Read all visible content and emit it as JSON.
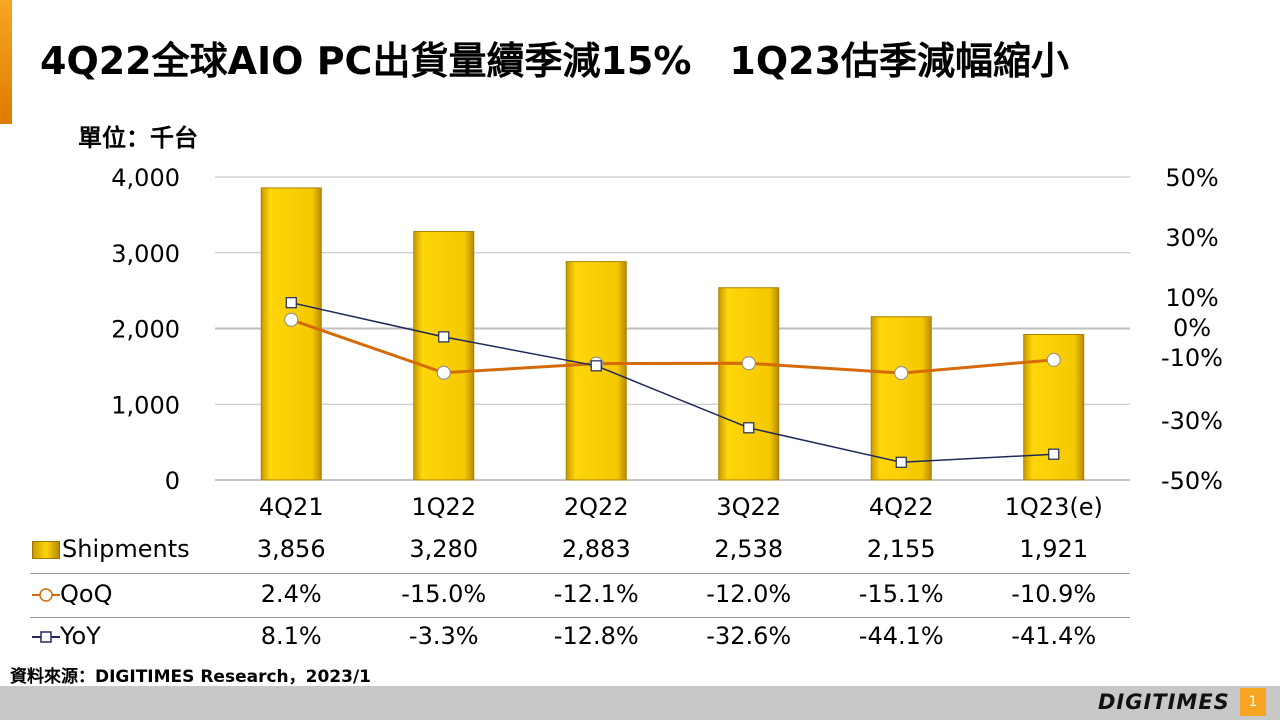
{
  "title": "4Q22全球AIO PC出貨量續季減15%　1Q23估季減幅縮小",
  "unit_label": "單位：千台",
  "source": "資料來源：DIGITIMES Research，2023/1",
  "logo": "DIGITIMES",
  "page_number": "1",
  "colors": {
    "bar": "#f2c300",
    "qoq_line": "#d46b08",
    "yoy_line": "#1f2a5c",
    "accent": "#f6a623"
  },
  "chart_data": {
    "type": "bar",
    "categories": [
      "4Q21",
      "1Q22",
      "2Q22",
      "3Q22",
      "4Q22",
      "1Q23(e)"
    ],
    "left_axis": {
      "ticks": [
        "4,000",
        "3,000",
        "2,000",
        "1,000",
        "0"
      ],
      "ylim": [
        0,
        4000
      ]
    },
    "right_axis": {
      "ticks": [
        "50%",
        "30%",
        "10%",
        "0%",
        "-10%",
        "-30%",
        "-50%"
      ],
      "ylim": [
        -50,
        50
      ]
    },
    "series": [
      {
        "name": "Shipments",
        "kind": "bar",
        "axis": "left",
        "values": [
          3856,
          3280,
          2883,
          2538,
          2155,
          1921
        ],
        "labels": [
          "3,856",
          "3,280",
          "2,883",
          "2,538",
          "2,155",
          "1,921"
        ]
      },
      {
        "name": "QoQ",
        "kind": "line",
        "axis": "right",
        "values": [
          2.4,
          -15.0,
          -12.1,
          -12.0,
          -15.1,
          -10.9
        ],
        "labels": [
          "2.4%",
          "-15.0%",
          "-12.1%",
          "-12.0%",
          "-15.1%",
          "-10.9%"
        ]
      },
      {
        "name": "YoY",
        "kind": "line",
        "axis": "right",
        "values": [
          8.1,
          -3.3,
          -12.8,
          -32.6,
          -44.1,
          -41.4
        ],
        "labels": [
          "8.1%",
          "-3.3%",
          "-12.8%",
          "-32.6%",
          "-44.1%",
          "-41.4%"
        ]
      }
    ]
  }
}
